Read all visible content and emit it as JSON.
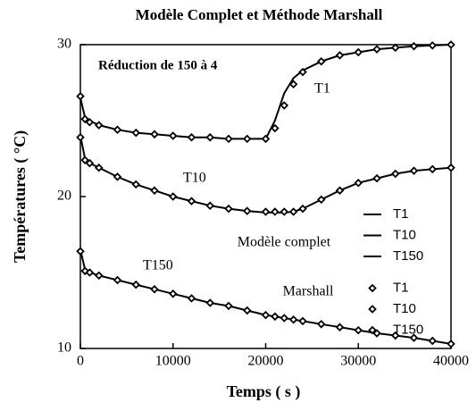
{
  "chart_data": {
    "type": "line",
    "title": "Modèle Complet et Méthode Marshall",
    "x_label": "Temps ( s )",
    "y_label": "Températures ( °C)",
    "x": [
      0,
      500,
      1000,
      2000,
      4000,
      6000,
      8000,
      10000,
      12000,
      14000,
      16000,
      18000,
      20000,
      21000,
      22000,
      23000,
      24000,
      26000,
      28000,
      30000,
      32000,
      34000,
      36000,
      38000,
      40000
    ],
    "xlim": [
      0,
      40000
    ],
    "xticks": [
      0,
      10000,
      20000,
      30000,
      40000
    ],
    "ylim": [
      10,
      30
    ],
    "yticks": [
      10,
      20,
      30
    ],
    "legend_groups": [
      "Modèle complet",
      "Marshall"
    ],
    "annotations": [
      "Réduction de 150 à 4",
      "T1",
      "T10",
      "T150"
    ],
    "series": [
      {
        "name": "T1",
        "style": "line",
        "color": "#000000",
        "values": [
          26.5,
          25.2,
          25.0,
          24.7,
          24.4,
          24.2,
          24.1,
          24.0,
          23.9,
          23.9,
          23.8,
          23.8,
          23.8,
          25.0,
          26.8,
          27.8,
          28.3,
          28.9,
          29.3,
          29.5,
          29.7,
          29.8,
          29.9,
          29.95,
          30.0
        ]
      },
      {
        "name": "T10",
        "style": "line",
        "color": "#000000",
        "values": [
          24.0,
          22.5,
          22.2,
          21.9,
          21.3,
          20.8,
          20.4,
          20.0,
          19.7,
          19.4,
          19.2,
          19.05,
          18.95,
          18.95,
          18.95,
          19.0,
          19.2,
          19.8,
          20.4,
          20.9,
          21.2,
          21.5,
          21.7,
          21.8,
          21.9
        ]
      },
      {
        "name": "T150",
        "style": "line",
        "color": "#000000",
        "values": [
          16.5,
          15.2,
          15.0,
          14.8,
          14.5,
          14.2,
          13.9,
          13.6,
          13.3,
          13.0,
          12.8,
          12.5,
          12.2,
          12.1,
          12.0,
          11.9,
          11.8,
          11.6,
          11.4,
          11.2,
          11.0,
          10.85,
          10.7,
          10.5,
          10.3
        ]
      },
      {
        "name": "T1",
        "style": "marker",
        "color": "#000000",
        "values": [
          26.6,
          25.1,
          24.9,
          24.7,
          24.4,
          24.2,
          24.1,
          24.0,
          23.9,
          23.9,
          23.8,
          23.8,
          23.8,
          24.5,
          26.0,
          27.4,
          28.2,
          28.9,
          29.3,
          29.5,
          29.7,
          29.8,
          29.9,
          29.95,
          30.0
        ]
      },
      {
        "name": "T10",
        "style": "marker",
        "color": "#000000",
        "values": [
          23.9,
          22.4,
          22.2,
          21.9,
          21.3,
          20.8,
          20.4,
          20.0,
          19.7,
          19.4,
          19.2,
          19.05,
          19.0,
          19.0,
          19.0,
          19.0,
          19.2,
          19.8,
          20.4,
          20.9,
          21.2,
          21.5,
          21.7,
          21.8,
          21.9
        ]
      },
      {
        "name": "T150",
        "style": "marker",
        "color": "#000000",
        "values": [
          16.4,
          15.1,
          15.0,
          14.8,
          14.5,
          14.2,
          13.9,
          13.6,
          13.3,
          13.0,
          12.8,
          12.5,
          12.2,
          12.1,
          12.0,
          11.9,
          11.8,
          11.6,
          11.4,
          11.2,
          11.0,
          10.85,
          10.7,
          10.5,
          10.3
        ]
      }
    ]
  }
}
